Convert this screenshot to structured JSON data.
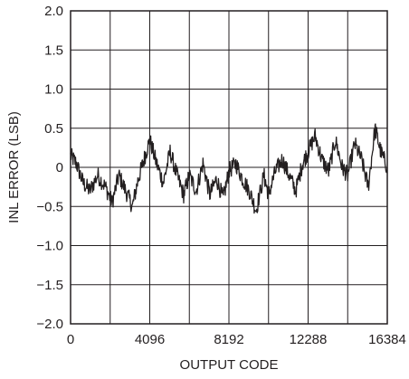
{
  "chart_data": {
    "type": "line",
    "title": "",
    "xlabel": "OUTPUT CODE",
    "ylabel": "INL ERROR (LSB)",
    "xlim": [
      0,
      16384
    ],
    "ylim": [
      -2.0,
      2.0
    ],
    "x_ticks": [
      0,
      2048,
      4096,
      6144,
      8192,
      10240,
      12288,
      14336,
      16384
    ],
    "x_tick_labels": [
      "0",
      "",
      "4096",
      "",
      "8192",
      "",
      "12288",
      "",
      "16384"
    ],
    "y_ticks": [
      2.0,
      1.5,
      1.0,
      0.5,
      0,
      -0.5,
      -1.0,
      -1.5,
      -2.0
    ],
    "y_tick_labels": [
      "2.0",
      "1.5",
      "1.0",
      "0.5",
      "0",
      "−0.5",
      "−1.0",
      "−1.5",
      "−2.0"
    ],
    "grid": true,
    "line_color": "#231f20",
    "series": [
      {
        "x": [
          0,
          300,
          650,
          1000,
          1400,
          1800,
          2150,
          2500,
          2850,
          3200,
          3500,
          3800,
          4096,
          4450,
          4800,
          5150,
          5500,
          5850,
          6144,
          6500,
          6850,
          7200,
          7550,
          7900,
          8192,
          8550,
          8900,
          9250,
          9600,
          10000,
          10240,
          10600,
          10950,
          11300,
          11650,
          12000,
          12288,
          12650,
          13000,
          13350,
          13700,
          14050,
          14336,
          14700,
          15050,
          15400,
          15750,
          16050,
          16384
        ],
        "y": [
          0.15,
          0.05,
          -0.2,
          -0.3,
          -0.1,
          -0.25,
          -0.45,
          -0.1,
          -0.3,
          -0.5,
          -0.15,
          0.1,
          0.35,
          0.05,
          -0.2,
          0.2,
          -0.1,
          -0.35,
          -0.1,
          -0.3,
          0.05,
          -0.35,
          -0.15,
          -0.4,
          -0.05,
          0.05,
          -0.15,
          -0.3,
          -0.55,
          -0.1,
          -0.35,
          -0.05,
          0.1,
          -0.1,
          -0.3,
          0.05,
          0.2,
          0.4,
          0.1,
          -0.05,
          0.35,
          0.0,
          -0.1,
          0.3,
          0.1,
          -0.25,
          0.5,
          0.2,
          0.0
        ]
      }
    ]
  }
}
